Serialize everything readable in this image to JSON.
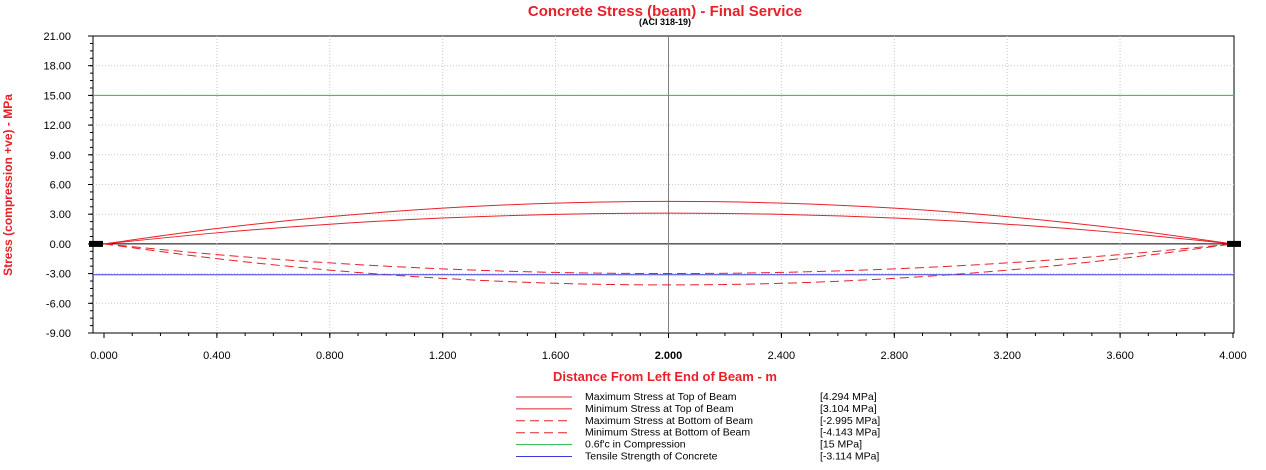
{
  "chart_data": {
    "type": "line",
    "title": "Concrete Stress (beam) - Final Service",
    "subtitle": "(ACI 318-19)",
    "xlabel": "Distance From Left End of Beam - m",
    "ylabel": "Stress (compression +ve) - MPa",
    "xlim": [
      0,
      4.0
    ],
    "ylim": [
      -9,
      21
    ],
    "x_ticks": [
      "0.000",
      "0.400",
      "0.800",
      "1.200",
      "1.600",
      "2.000",
      "2.400",
      "2.800",
      "3.200",
      "3.600",
      "4.000"
    ],
    "y_ticks": [
      "21.00",
      "18.00",
      "15.00",
      "12.00",
      "9.00",
      "6.00",
      "3.00",
      "0.00",
      "-3.00",
      "-6.00",
      "-9.00"
    ],
    "x_tick_values": [
      0,
      0.4,
      0.8,
      1.2,
      1.6,
      2.0,
      2.4,
      2.8,
      3.2,
      3.6,
      4.0
    ],
    "y_tick_values": [
      21,
      18,
      15,
      12,
      9,
      6,
      3,
      0,
      -3,
      -6,
      -9
    ],
    "grid": true,
    "legend_position": "bottom",
    "series": [
      {
        "name": "Maximum Stress at Top of Beam",
        "value_label": "[4.294  MPa]",
        "color": "#e8202a",
        "dash": "solid",
        "x": [
          0,
          0.4,
          0.8,
          1.2,
          1.6,
          2.0,
          2.4,
          2.8,
          3.2,
          3.6,
          4.0
        ],
        "values": [
          0,
          1.55,
          2.75,
          3.61,
          4.12,
          4.294,
          4.12,
          3.61,
          2.75,
          1.55,
          0
        ]
      },
      {
        "name": "Minimum Stress at Top of Beam",
        "value_label": "[3.104  MPa]",
        "color": "#e8202a",
        "dash": "solid",
        "x": [
          0,
          0.4,
          0.8,
          1.2,
          1.6,
          2.0,
          2.4,
          2.8,
          3.2,
          3.6,
          4.0
        ],
        "values": [
          0,
          1.12,
          1.99,
          2.61,
          2.98,
          3.104,
          2.98,
          2.61,
          1.99,
          1.12,
          0
        ]
      },
      {
        "name": "Maximum Stress at Bottom of Beam",
        "value_label": "[-2.995  MPa]",
        "color": "#e8202a",
        "dash": "dashed",
        "x": [
          0,
          0.4,
          0.8,
          1.2,
          1.6,
          2.0,
          2.4,
          2.8,
          3.2,
          3.6,
          4.0
        ],
        "values": [
          0,
          -1.08,
          -1.92,
          -2.52,
          -2.88,
          -2.995,
          -2.88,
          -2.52,
          -1.92,
          -1.08,
          0
        ]
      },
      {
        "name": "Minimum Stress at Bottom of Beam",
        "value_label": "[-4.143  MPa]",
        "color": "#e8202a",
        "dash": "dashed",
        "x": [
          0,
          0.4,
          0.8,
          1.2,
          1.6,
          2.0,
          2.4,
          2.8,
          3.2,
          3.6,
          4.0
        ],
        "values": [
          0,
          -1.49,
          -2.65,
          -3.48,
          -3.98,
          -4.143,
          -3.98,
          -3.48,
          -2.65,
          -1.49,
          0
        ]
      },
      {
        "name": "0.6f'c in Compression",
        "value_label": "[15  MPa]",
        "color": "#2db84a",
        "dash": "solid",
        "x": [
          0,
          4.0
        ],
        "values": [
          15,
          15
        ]
      },
      {
        "name": "Tensile Strength of Concrete",
        "value_label": "[-3.114  MPa]",
        "color": "#3a3ad8",
        "dash": "solid",
        "x": [
          0,
          4.0
        ],
        "values": [
          -3.114,
          -3.114
        ]
      }
    ]
  }
}
